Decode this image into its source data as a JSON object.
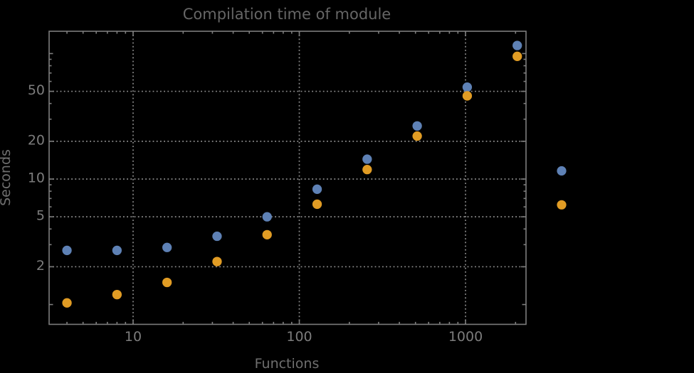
{
  "title": "Compilation time of module",
  "axes": {
    "x_label": "Functions",
    "y_label": "Seconds"
  },
  "colors": {
    "background": "#000000",
    "frame": "#7d7d7d",
    "gridline": "#8e8e8e",
    "title_text": "#666666",
    "axis_label_text": "#6f6f6f",
    "tick_label_text": "#7c7c7c",
    "series1": "#5E81B5",
    "series2": "#E19C24"
  },
  "chart_data": {
    "type": "scatter",
    "title": "Compilation time of module",
    "xlabel": "Functions",
    "ylabel": "Seconds",
    "x_scale": "log",
    "y_scale": "log",
    "xlim": [
      3.12,
      2312
    ],
    "ylim": [
      0.69,
      151
    ],
    "grid": true,
    "grid_style": "dotted",
    "x_ticks": [
      10,
      100,
      1000
    ],
    "x_tick_labels": [
      "10",
      "100",
      "1000"
    ],
    "x_minor_ticks": [
      4,
      5,
      6,
      7,
      8,
      9,
      20,
      30,
      40,
      50,
      60,
      70,
      80,
      90,
      200,
      300,
      400,
      500,
      600,
      700,
      800,
      900,
      2000
    ],
    "y_ticks": [
      2,
      5,
      10,
      20,
      50
    ],
    "y_tick_labels": [
      "2",
      "5",
      "10",
      "20",
      "50"
    ],
    "y_unlabeled_ticks": [
      1,
      100
    ],
    "y_minor_ticks": [
      3,
      4,
      6,
      7,
      8,
      9,
      30,
      40,
      60,
      70,
      80,
      90
    ],
    "x": [
      4,
      8,
      16,
      32,
      64,
      128,
      256,
      512,
      1024,
      2048
    ],
    "series": [
      {
        "name": "series-1-blue",
        "color": "#5E81B5",
        "marker": "circle",
        "values": [
          2.7,
          2.7,
          2.85,
          3.5,
          5.0,
          8.3,
          14.4,
          26.5,
          54,
          116
        ]
      },
      {
        "name": "series-2-orange",
        "color": "#E19C24",
        "marker": "circle",
        "values": [
          1.03,
          1.2,
          1.5,
          2.2,
          3.6,
          6.3,
          11.9,
          22,
          46,
          95
        ]
      }
    ],
    "legend": {
      "position": "outside-right",
      "labels_visible": false,
      "entries": [
        {
          "series": "series-1-blue",
          "color": "#5E81B5"
        },
        {
          "series": "series-2-orange",
          "color": "#E19C24"
        }
      ]
    }
  }
}
